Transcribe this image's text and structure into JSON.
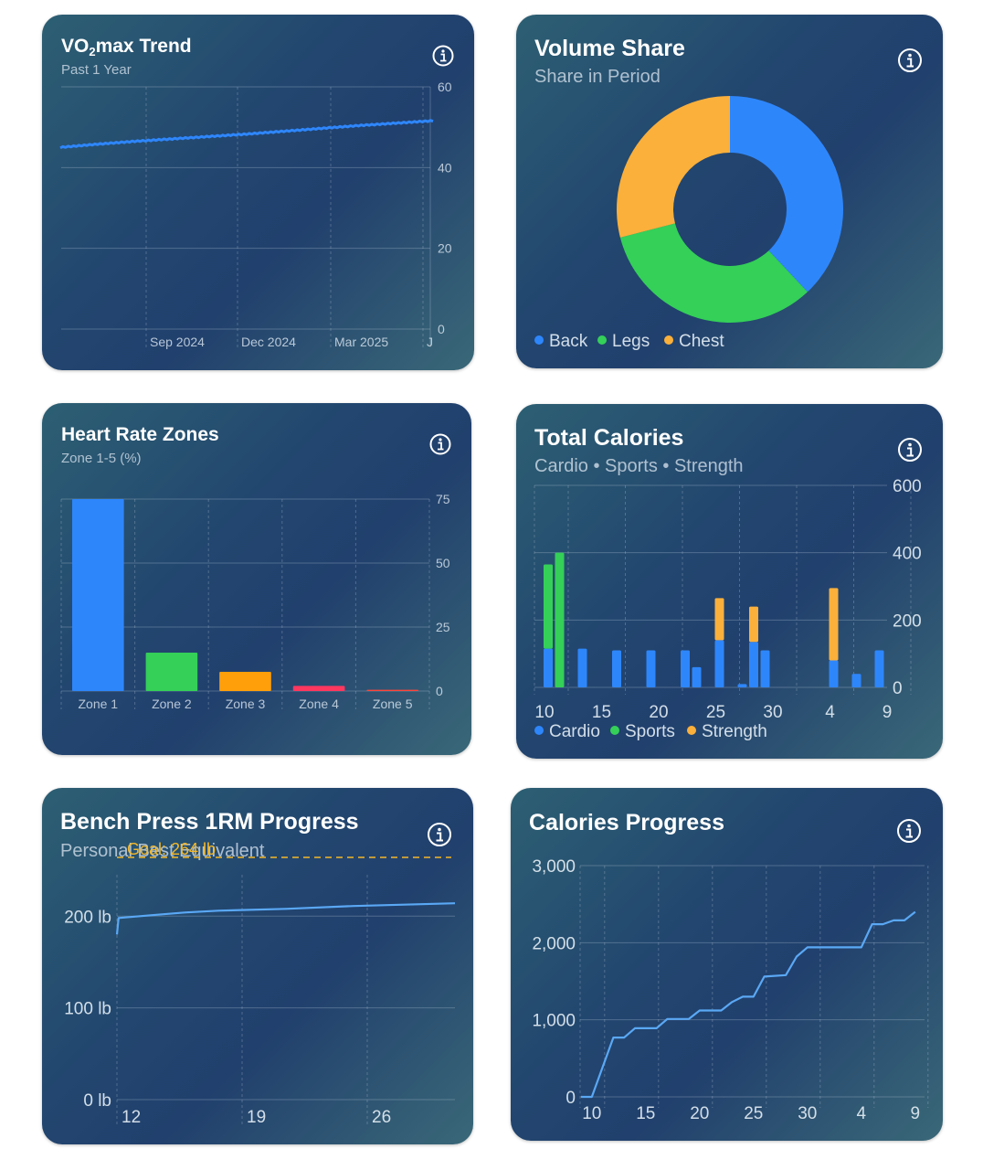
{
  "colors": {
    "blue": "#2e86fb",
    "light_blue": "#5aa8f5",
    "green": "#34d058",
    "orange": "#fbb03b",
    "zone3": "#ff9f0a",
    "zone4": "#ff375f",
    "zone5": "#ff453a",
    "goal": "#f5b829"
  },
  "icons": {
    "info": "info-circle-icon"
  },
  "cards": {
    "vo2": {
      "title_main": "VO",
      "title_sub": "2",
      "title_rest": "max Trend",
      "subtitle": "Past 1 Year"
    },
    "volume": {
      "title": "Volume Share",
      "subtitle": "Share in Period"
    },
    "hr": {
      "title": "Heart Rate Zones",
      "subtitle": "Zone 1-5 (%)"
    },
    "calories": {
      "title": "Total Calories",
      "subtitle": "Cardio • Sports • Strength"
    },
    "bench": {
      "title": "Bench Press 1RM Progress",
      "subtitle": "Personal Best Equivalent"
    },
    "calprog": {
      "title": "Calories Progress"
    }
  },
  "chart_data": [
    {
      "id": "vo2",
      "type": "line",
      "title": "VO2max Trend",
      "subtitle": "Past 1 Year",
      "x_tick_labels": [
        "Sep 2024",
        "Dec 2024",
        "Mar 2025",
        "J"
      ],
      "y_ticks": [
        0,
        20,
        40,
        60
      ],
      "ylim": [
        0,
        60
      ],
      "grid": true,
      "series": [
        {
          "x_fraction": [
            0,
            0.1,
            0.2,
            0.3,
            0.4,
            0.5,
            0.6,
            0.7,
            0.8,
            0.9,
            1.0
          ],
          "values": [
            45,
            45.8,
            46.5,
            47.1,
            47.7,
            48.3,
            49.0,
            49.7,
            50.4,
            51.0,
            51.6
          ]
        }
      ]
    },
    {
      "id": "volume",
      "type": "pie",
      "title": "Volume Share",
      "subtitle": "Share in Period",
      "legend": [
        "Back",
        "Legs",
        "Chest"
      ],
      "legend_placement": "bottom-left",
      "values": [
        38,
        33,
        29
      ]
    },
    {
      "id": "hr",
      "type": "bar",
      "title": "Heart Rate Zones",
      "subtitle": "Zone 1-5 (%)",
      "categories": [
        "Zone 1",
        "Zone 2",
        "Zone 3",
        "Zone 4",
        "Zone 5"
      ],
      "values": [
        75,
        15,
        7.5,
        2,
        0.5
      ],
      "y_ticks": [
        0,
        25,
        50,
        75
      ],
      "ylim": [
        0,
        75
      ],
      "grid": true
    },
    {
      "id": "calories",
      "type": "bar",
      "title": "Total Calories",
      "subtitle": "Cardio • Sports • Strength",
      "x_tick_labels": [
        "10",
        "15",
        "20",
        "25",
        "30",
        "4",
        "9"
      ],
      "y_ticks": [
        0,
        200,
        400,
        600
      ],
      "ylim": [
        0,
        600
      ],
      "legend": [
        "Cardio",
        "Sports",
        "Strength"
      ],
      "legend_placement": "bottom-left",
      "grid": true,
      "days": [
        10,
        11,
        13,
        16,
        19,
        22,
        23,
        25,
        27,
        28,
        29,
        35,
        37,
        39
      ],
      "series": [
        {
          "name": "Cardio",
          "values": [
            115,
            0,
            115,
            110,
            110,
            110,
            60,
            140,
            10,
            135,
            110,
            80,
            40,
            110
          ]
        },
        {
          "name": "Sports",
          "values": [
            250,
            400,
            0,
            0,
            0,
            0,
            0,
            0,
            0,
            0,
            0,
            0,
            0,
            0
          ]
        },
        {
          "name": "Strength",
          "values": [
            0,
            0,
            0,
            0,
            0,
            0,
            0,
            125,
            0,
            105,
            0,
            215,
            0,
            0
          ]
        }
      ]
    },
    {
      "id": "bench",
      "type": "line",
      "title": "Bench Press 1RM Progress",
      "subtitle": "Personal Best Equivalent",
      "x_tick_labels": [
        "12",
        "19",
        "26"
      ],
      "y_tick_labels": [
        "0 lb",
        "100 lb",
        "200 lb"
      ],
      "ylim": [
        0,
        280
      ],
      "goal": {
        "label": "Goal: 264 lb",
        "value": 264
      },
      "grid": true,
      "series": [
        {
          "x_fraction": [
            0,
            0.005,
            0.1,
            0.2,
            0.3,
            0.5,
            0.7,
            1.0
          ],
          "values": [
            180,
            198,
            201,
            204,
            206,
            208,
            211,
            214
          ]
        }
      ]
    },
    {
      "id": "calprog",
      "type": "line",
      "title": "Calories Progress",
      "x_tick_labels": [
        "10",
        "15",
        "20",
        "25",
        "30",
        "4",
        "9"
      ],
      "y_tick_labels": [
        "0",
        "1,000",
        "2,000",
        "3,000"
      ],
      "ylim": [
        0,
        3000
      ],
      "grid": true,
      "series": [
        {
          "x": [
            9,
            10,
            12,
            13,
            14,
            16,
            17,
            18,
            19,
            20,
            22,
            23,
            24,
            25,
            26,
            28,
            29,
            30,
            31,
            33,
            34,
            35,
            36,
            37,
            38,
            39,
            40
          ],
          "values": [
            0,
            0,
            770,
            770,
            890,
            890,
            1010,
            1010,
            1010,
            1120,
            1120,
            1230,
            1300,
            1300,
            1560,
            1580,
            1820,
            1940,
            1940,
            1940,
            1940,
            1940,
            2240,
            2240,
            2290,
            2290,
            2400
          ]
        }
      ]
    }
  ]
}
